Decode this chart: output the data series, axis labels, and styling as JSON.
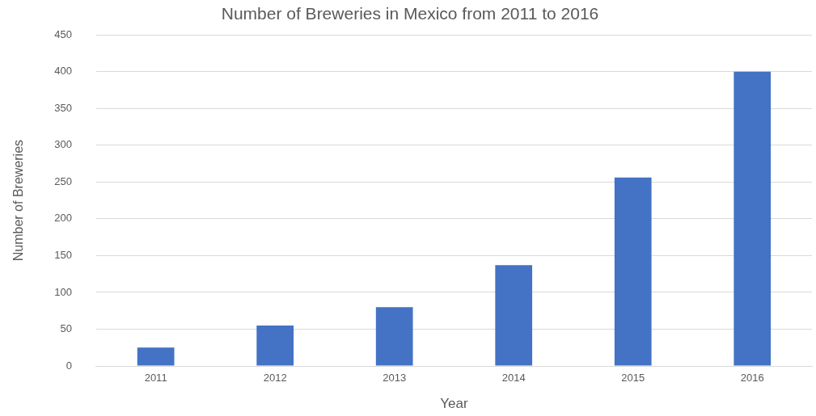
{
  "chart_data": {
    "type": "bar",
    "title": "Number of Breweries in Mexico from 2011 to 2016",
    "xlabel": "Year",
    "ylabel": "Number of Breweries",
    "categories": [
      "2011",
      "2012",
      "2013",
      "2014",
      "2015",
      "2016"
    ],
    "values": [
      25,
      55,
      80,
      137,
      256,
      400
    ],
    "color": "#4472c4",
    "ylim": [
      0,
      450
    ],
    "yticks": [
      0,
      50,
      100,
      150,
      200,
      250,
      300,
      350,
      400,
      450
    ],
    "grid": "y",
    "legend": false
  }
}
